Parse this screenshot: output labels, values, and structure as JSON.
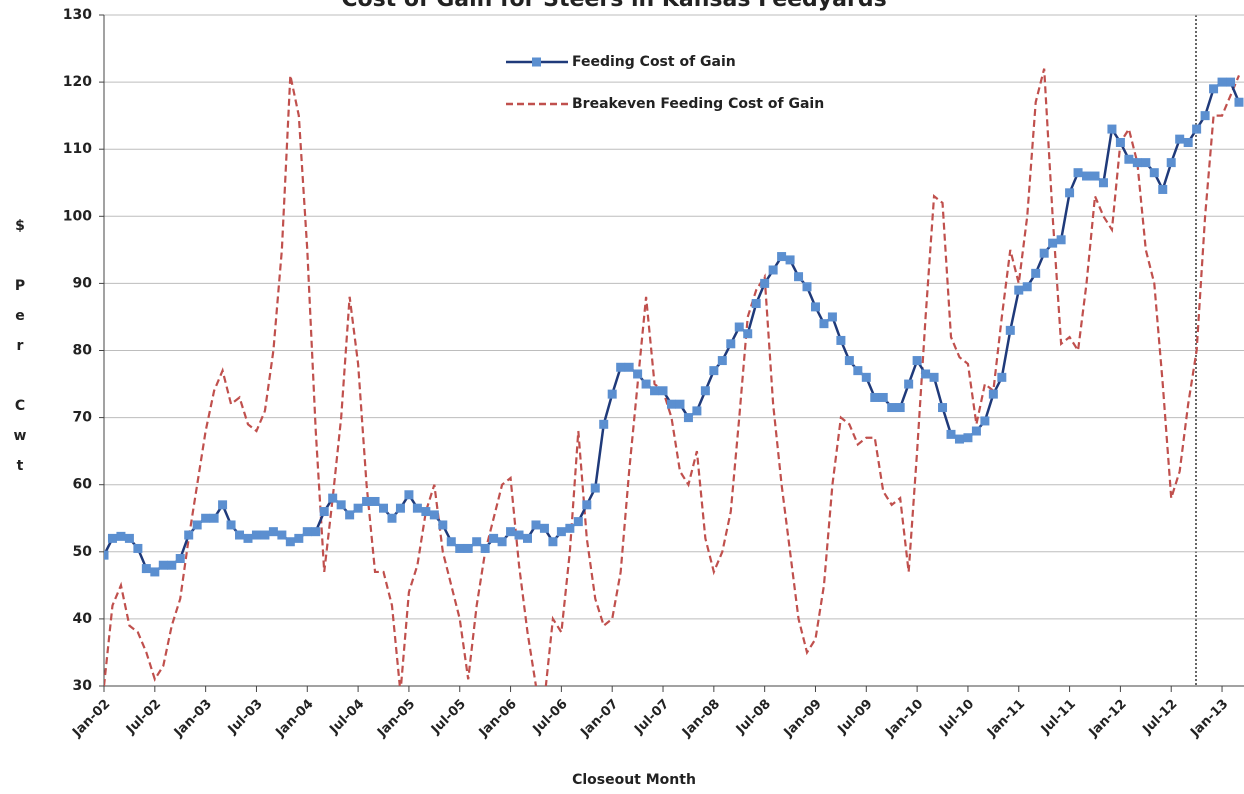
{
  "chart_data": {
    "type": "line",
    "title": "Cost of Gain for Steers in Kansas Feedyards",
    "x_label": "Closeout Month",
    "y_label": "$ Per Cwt",
    "categories": [
      "Jan-02",
      null,
      null,
      null,
      null,
      null,
      "Jul-02",
      null,
      null,
      null,
      null,
      null,
      "Jan-03",
      null,
      null,
      null,
      null,
      null,
      "Jul-03",
      null,
      null,
      null,
      null,
      null,
      "Jan-04",
      null,
      null,
      null,
      null,
      null,
      "Jul-04",
      null,
      null,
      null,
      null,
      null,
      "Jan-05",
      null,
      null,
      null,
      null,
      null,
      "Jul-05",
      null,
      null,
      null,
      null,
      null,
      "Jan-06",
      null,
      null,
      null,
      null,
      null,
      "Jul-06",
      null,
      null,
      null,
      null,
      null,
      "Jan-07",
      null,
      null,
      null,
      null,
      null,
      "Jul-07",
      null,
      null,
      null,
      null,
      null,
      "Jan-08",
      null,
      null,
      null,
      null,
      null,
      "Jul-08",
      null,
      null,
      null,
      null,
      null,
      "Jan-09",
      null,
      null,
      null,
      null,
      null,
      "Jul-09",
      null,
      null,
      null,
      null,
      null,
      "Jan-10",
      null,
      null,
      null,
      null,
      null,
      "Jul-10",
      null,
      null,
      null,
      null,
      null,
      "Jan-11",
      null,
      null,
      null,
      null,
      null,
      "Jul-11",
      null,
      null,
      null,
      null,
      null,
      "Jan-12",
      null,
      null,
      null,
      null,
      null,
      "Jul-12",
      null,
      null,
      null,
      null,
      null,
      "Jan-13",
      null,
      null
    ],
    "series": [
      {
        "name": "Feeding Cost of Gain",
        "color": "#1f3a7a",
        "marker_color": "#5b8fd0",
        "dashed": false,
        "values": [
          49.5,
          52,
          52.3,
          52,
          50.5,
          47.5,
          47,
          48,
          48,
          49,
          52.5,
          54,
          55,
          55,
          57,
          54,
          52.5,
          52,
          52.5,
          52.5,
          53,
          52.5,
          51.5,
          52,
          53,
          53,
          56,
          58,
          57,
          55.5,
          56.5,
          57.5,
          57.5,
          56.5,
          55,
          56.5,
          58.5,
          56.5,
          56,
          55.5,
          54,
          51.5,
          50.5,
          50.5,
          51.5,
          50.5,
          52,
          51.5,
          53,
          52.5,
          52,
          54,
          53.5,
          51.5,
          53,
          53.5,
          54.5,
          57,
          59.5,
          69,
          73.5,
          77.5,
          77.5,
          76.5,
          75,
          74,
          74,
          72,
          72,
          70,
          71,
          74,
          77,
          78.5,
          81,
          83.5,
          82.5,
          87,
          90,
          92,
          94,
          93.5,
          91,
          89.5,
          86.5,
          84,
          85,
          81.5,
          78.5,
          77,
          76,
          73,
          73,
          71.5,
          71.5,
          75,
          78.5,
          76.5,
          76,
          71.5,
          67.5,
          66.8,
          67,
          68,
          69.5,
          73.5,
          76,
          83,
          89,
          89.5,
          91.5,
          94.5,
          96,
          96.5,
          103.5,
          106.5,
          106,
          106,
          105,
          113,
          111,
          108.5,
          108,
          108,
          106.5,
          104,
          108,
          111.5,
          111,
          113,
          115,
          119,
          120,
          120,
          117
        ]
      },
      {
        "name": "Breakeven Feeding Cost of Gain",
        "color": "#c0504d",
        "dashed": true,
        "values": [
          30,
          42,
          45,
          39,
          38,
          35,
          31,
          33,
          39,
          43,
          52,
          60,
          68,
          74,
          77,
          72,
          73,
          69,
          68,
          71,
          80,
          95,
          121,
          115,
          95,
          68,
          47,
          58,
          70,
          88,
          78,
          60,
          47,
          47,
          42,
          29,
          44,
          48,
          56,
          60,
          50,
          45,
          40,
          31,
          42,
          50,
          55,
          60,
          61,
          48,
          38,
          30,
          28,
          40,
          38,
          50,
          68,
          52,
          43,
          39,
          40,
          47,
          62,
          75,
          88,
          75,
          74,
          70,
          62,
          60,
          65,
          52,
          47,
          50,
          56,
          70,
          85,
          89,
          91,
          72,
          60,
          50,
          40,
          35,
          37,
          45,
          60,
          70,
          69,
          66,
          67,
          67,
          59,
          57,
          58,
          47,
          65,
          85,
          103,
          102,
          82,
          79,
          78,
          69,
          75,
          74,
          85,
          95,
          90,
          100,
          117,
          122,
          100,
          81,
          82,
          80,
          90,
          103,
          100,
          98,
          111,
          113,
          108,
          95,
          90,
          75,
          58,
          62,
          72,
          80,
          100,
          115,
          115,
          118,
          121
        ]
      }
    ],
    "ylim": [
      30,
      130
    ],
    "yticks": [
      30,
      40,
      50,
      60,
      70,
      80,
      90,
      100,
      110,
      120,
      130
    ],
    "grid": true,
    "legend": "top"
  }
}
